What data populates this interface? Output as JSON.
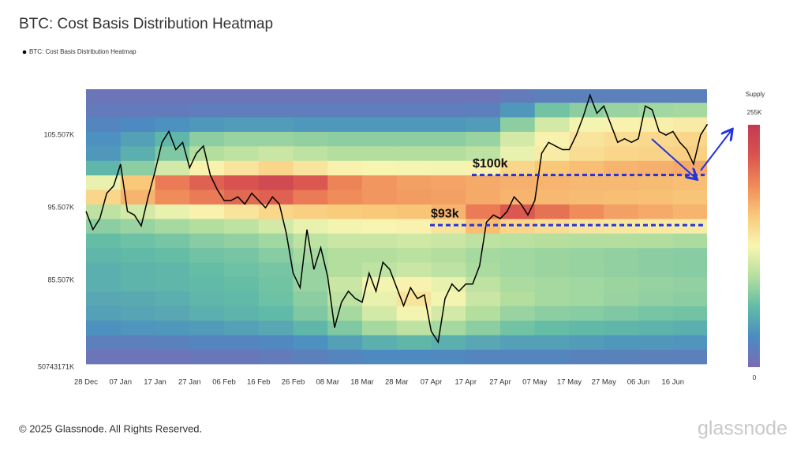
{
  "chart_data": {
    "type": "heatmap-line",
    "title": "BTC: Cost Basis Distribution Heatmap",
    "categories": [
      "28 Dec",
      null,
      null,
      null,
      null,
      "07 Jan",
      null,
      null,
      null,
      null,
      "17 Jan",
      null,
      null,
      null,
      null,
      "27 Jan",
      null,
      null,
      null,
      null,
      "06 Feb",
      null,
      null,
      null,
      null,
      "16 Feb",
      null,
      null,
      null,
      null,
      "26 Feb",
      null,
      null,
      null,
      null,
      "08 Mar",
      null,
      null,
      null,
      null,
      "18 Mar",
      null,
      null,
      null,
      null,
      "28 Mar",
      null,
      null,
      null,
      null,
      "07 Apr",
      null,
      null,
      null,
      null,
      "17 Apr",
      null,
      null,
      null,
      null,
      "27 Apr",
      null,
      null,
      null,
      null,
      "07 May",
      null,
      null,
      null,
      null,
      "17 May",
      null,
      null,
      null,
      null,
      "27 May",
      null,
      null,
      null,
      null,
      "06 Jun",
      null,
      null,
      null,
      null,
      "16 Jun",
      null,
      null,
      null,
      null,
      null
    ],
    "series": [
      {
        "name": "BTC: Cost Basis Distribution Heatmap",
        "color": "#000000",
        "values": [
          95000,
          92500,
          94000,
          97500,
          98500,
          101500,
          95000,
          94500,
          93000,
          97000,
          100500,
          104500,
          106000,
          103500,
          104500,
          101000,
          103000,
          104000,
          100000,
          98000,
          96500,
          96500,
          97000,
          96000,
          97500,
          96500,
          95500,
          97000,
          96000,
          92000,
          86500,
          84500,
          92500,
          87000,
          90000,
          86000,
          79000,
          82500,
          84000,
          83000,
          82500,
          86500,
          84000,
          88000,
          87000,
          84500,
          82000,
          84500,
          83000,
          83500,
          78500,
          77000,
          83000,
          85000,
          84000,
          85000,
          85000,
          87500,
          93500,
          94500,
          94000,
          95000,
          97000,
          96000,
          94500,
          96500,
          103000,
          104500,
          104000,
          103500,
          103500,
          105500,
          108000,
          111000,
          108500,
          109500,
          107000,
          104500,
          105000,
          104500,
          105000,
          109500,
          109000,
          106000,
          105500,
          106000,
          104500,
          103500,
          101500,
          105500,
          107000
        ]
      }
    ],
    "ylim": [
      73550,
      111810
    ],
    "yticks": [
      {
        "value": 85507,
        "label": "85.507K"
      },
      {
        "value": 95507,
        "label": "95.507K"
      },
      {
        "value": 105507,
        "label": "105.507K"
      }
    ],
    "y_floor_label": "50743171K",
    "y_bins": [
      74000,
      76000,
      78000,
      80000,
      82000,
      84000,
      86000,
      88000,
      90000,
      92000,
      94000,
      96000,
      98000,
      100000,
      102000,
      104000,
      106000,
      108000,
      110000,
      112000
    ],
    "z": [
      [
        10,
        10,
        10,
        12,
        12,
        15,
        20,
        25,
        30,
        30,
        28,
        25,
        25,
        25,
        22,
        22,
        20,
        20
      ],
      [
        20,
        20,
        22,
        25,
        25,
        28,
        35,
        45,
        55,
        60,
        55,
        50,
        45,
        45,
        42,
        40,
        40,
        38
      ],
      [
        35,
        38,
        40,
        42,
        45,
        50,
        60,
        75,
        90,
        100,
        90,
        80,
        70,
        65,
        62,
        60,
        58,
        55
      ],
      [
        45,
        48,
        50,
        55,
        58,
        62,
        75,
        90,
        110,
        125,
        110,
        95,
        85,
        80,
        78,
        75,
        72,
        70
      ],
      [
        50,
        52,
        55,
        60,
        62,
        68,
        80,
        100,
        120,
        140,
        125,
        105,
        95,
        90,
        88,
        85,
        82,
        80
      ],
      [
        55,
        58,
        60,
        62,
        65,
        70,
        85,
        105,
        125,
        130,
        120,
        100,
        92,
        90,
        88,
        86,
        84,
        82
      ],
      [
        55,
        58,
        60,
        65,
        68,
        72,
        85,
        95,
        100,
        105,
        100,
        92,
        88,
        86,
        84,
        82,
        80,
        78
      ],
      [
        60,
        62,
        65,
        70,
        72,
        78,
        90,
        95,
        95,
        98,
        95,
        90,
        88,
        86,
        84,
        82,
        80,
        78
      ],
      [
        65,
        68,
        72,
        78,
        82,
        88,
        100,
        105,
        105,
        108,
        105,
        100,
        98,
        96,
        95,
        95,
        94,
        92
      ],
      [
        80,
        85,
        90,
        95,
        100,
        110,
        120,
        125,
        128,
        130,
        140,
        165,
        150,
        145,
        140,
        138,
        136,
        135
      ],
      [
        100,
        110,
        120,
        130,
        140,
        150,
        155,
        158,
        160,
        162,
        170,
        200,
        220,
        205,
        190,
        180,
        175,
        170
      ],
      [
        150,
        170,
        190,
        200,
        210,
        215,
        200,
        190,
        185,
        182,
        180,
        175,
        170,
        168,
        166,
        165,
        164,
        162
      ],
      [
        120,
        160,
        200,
        215,
        225,
        235,
        220,
        195,
        185,
        180,
        178,
        175,
        172,
        170,
        168,
        168,
        166,
        165
      ],
      [
        60,
        80,
        110,
        130,
        140,
        150,
        140,
        130,
        128,
        126,
        125,
        130,
        150,
        160,
        165,
        170,
        172,
        175
      ],
      [
        40,
        55,
        75,
        95,
        100,
        105,
        100,
        95,
        95,
        95,
        95,
        100,
        120,
        135,
        145,
        150,
        152,
        155
      ],
      [
        35,
        45,
        60,
        80,
        85,
        85,
        82,
        80,
        80,
        80,
        80,
        85,
        110,
        130,
        140,
        145,
        148,
        150
      ],
      [
        25,
        30,
        35,
        40,
        42,
        42,
        40,
        40,
        40,
        40,
        40,
        42,
        80,
        110,
        125,
        130,
        132,
        135
      ],
      [
        15,
        15,
        15,
        18,
        18,
        18,
        18,
        18,
        18,
        18,
        18,
        20,
        40,
        70,
        80,
        85,
        88,
        90
      ],
      [
        10,
        10,
        10,
        10,
        10,
        10,
        10,
        10,
        10,
        10,
        10,
        10,
        15,
        20,
        20,
        20,
        20,
        20
      ]
    ],
    "colorscale": [
      "#7a6bb2",
      "#4a8cc2",
      "#62bca6",
      "#b5df9e",
      "#f8f6b2",
      "#f9c97a",
      "#f08a58",
      "#d9534f",
      "#c23a54"
    ],
    "colorbar": {
      "label": "Supply",
      "lim": [
        0,
        255
      ],
      "ticks": [
        {
          "value": 255,
          "label": "255K"
        },
        0
      ]
    },
    "annotations": [
      {
        "label": "$100k",
        "value": 100000,
        "color": "#2432e0"
      },
      {
        "label": "$93k",
        "value": 93100,
        "color": "#2432e0"
      }
    ]
  },
  "footer": {
    "copyright": "© 2025 Glassnode. All Rights Reserved.",
    "brand": "glassnode"
  }
}
